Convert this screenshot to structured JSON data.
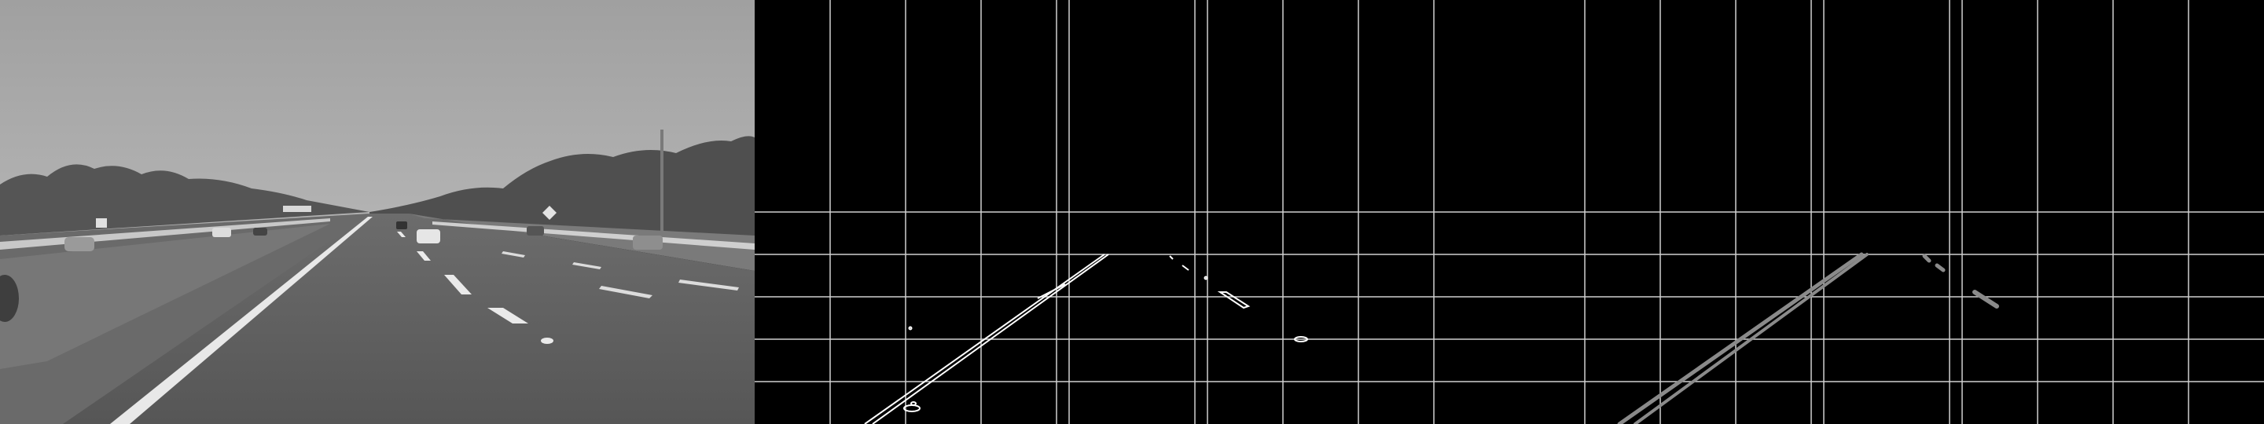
{
  "panels": [
    {
      "id": "grayscale-road-photo"
    },
    {
      "id": "canny-edge-map-with-grid"
    },
    {
      "id": "detected-lane-lines-with-grid"
    }
  ],
  "colors": {
    "sky": "#a3a3a3",
    "trees": "#4a4a4a",
    "road": "#5c5c5c",
    "edges": "#ffffff",
    "grid": "#d0d0d0",
    "lane_lines": "#8a8a8a",
    "background": "#000000"
  }
}
